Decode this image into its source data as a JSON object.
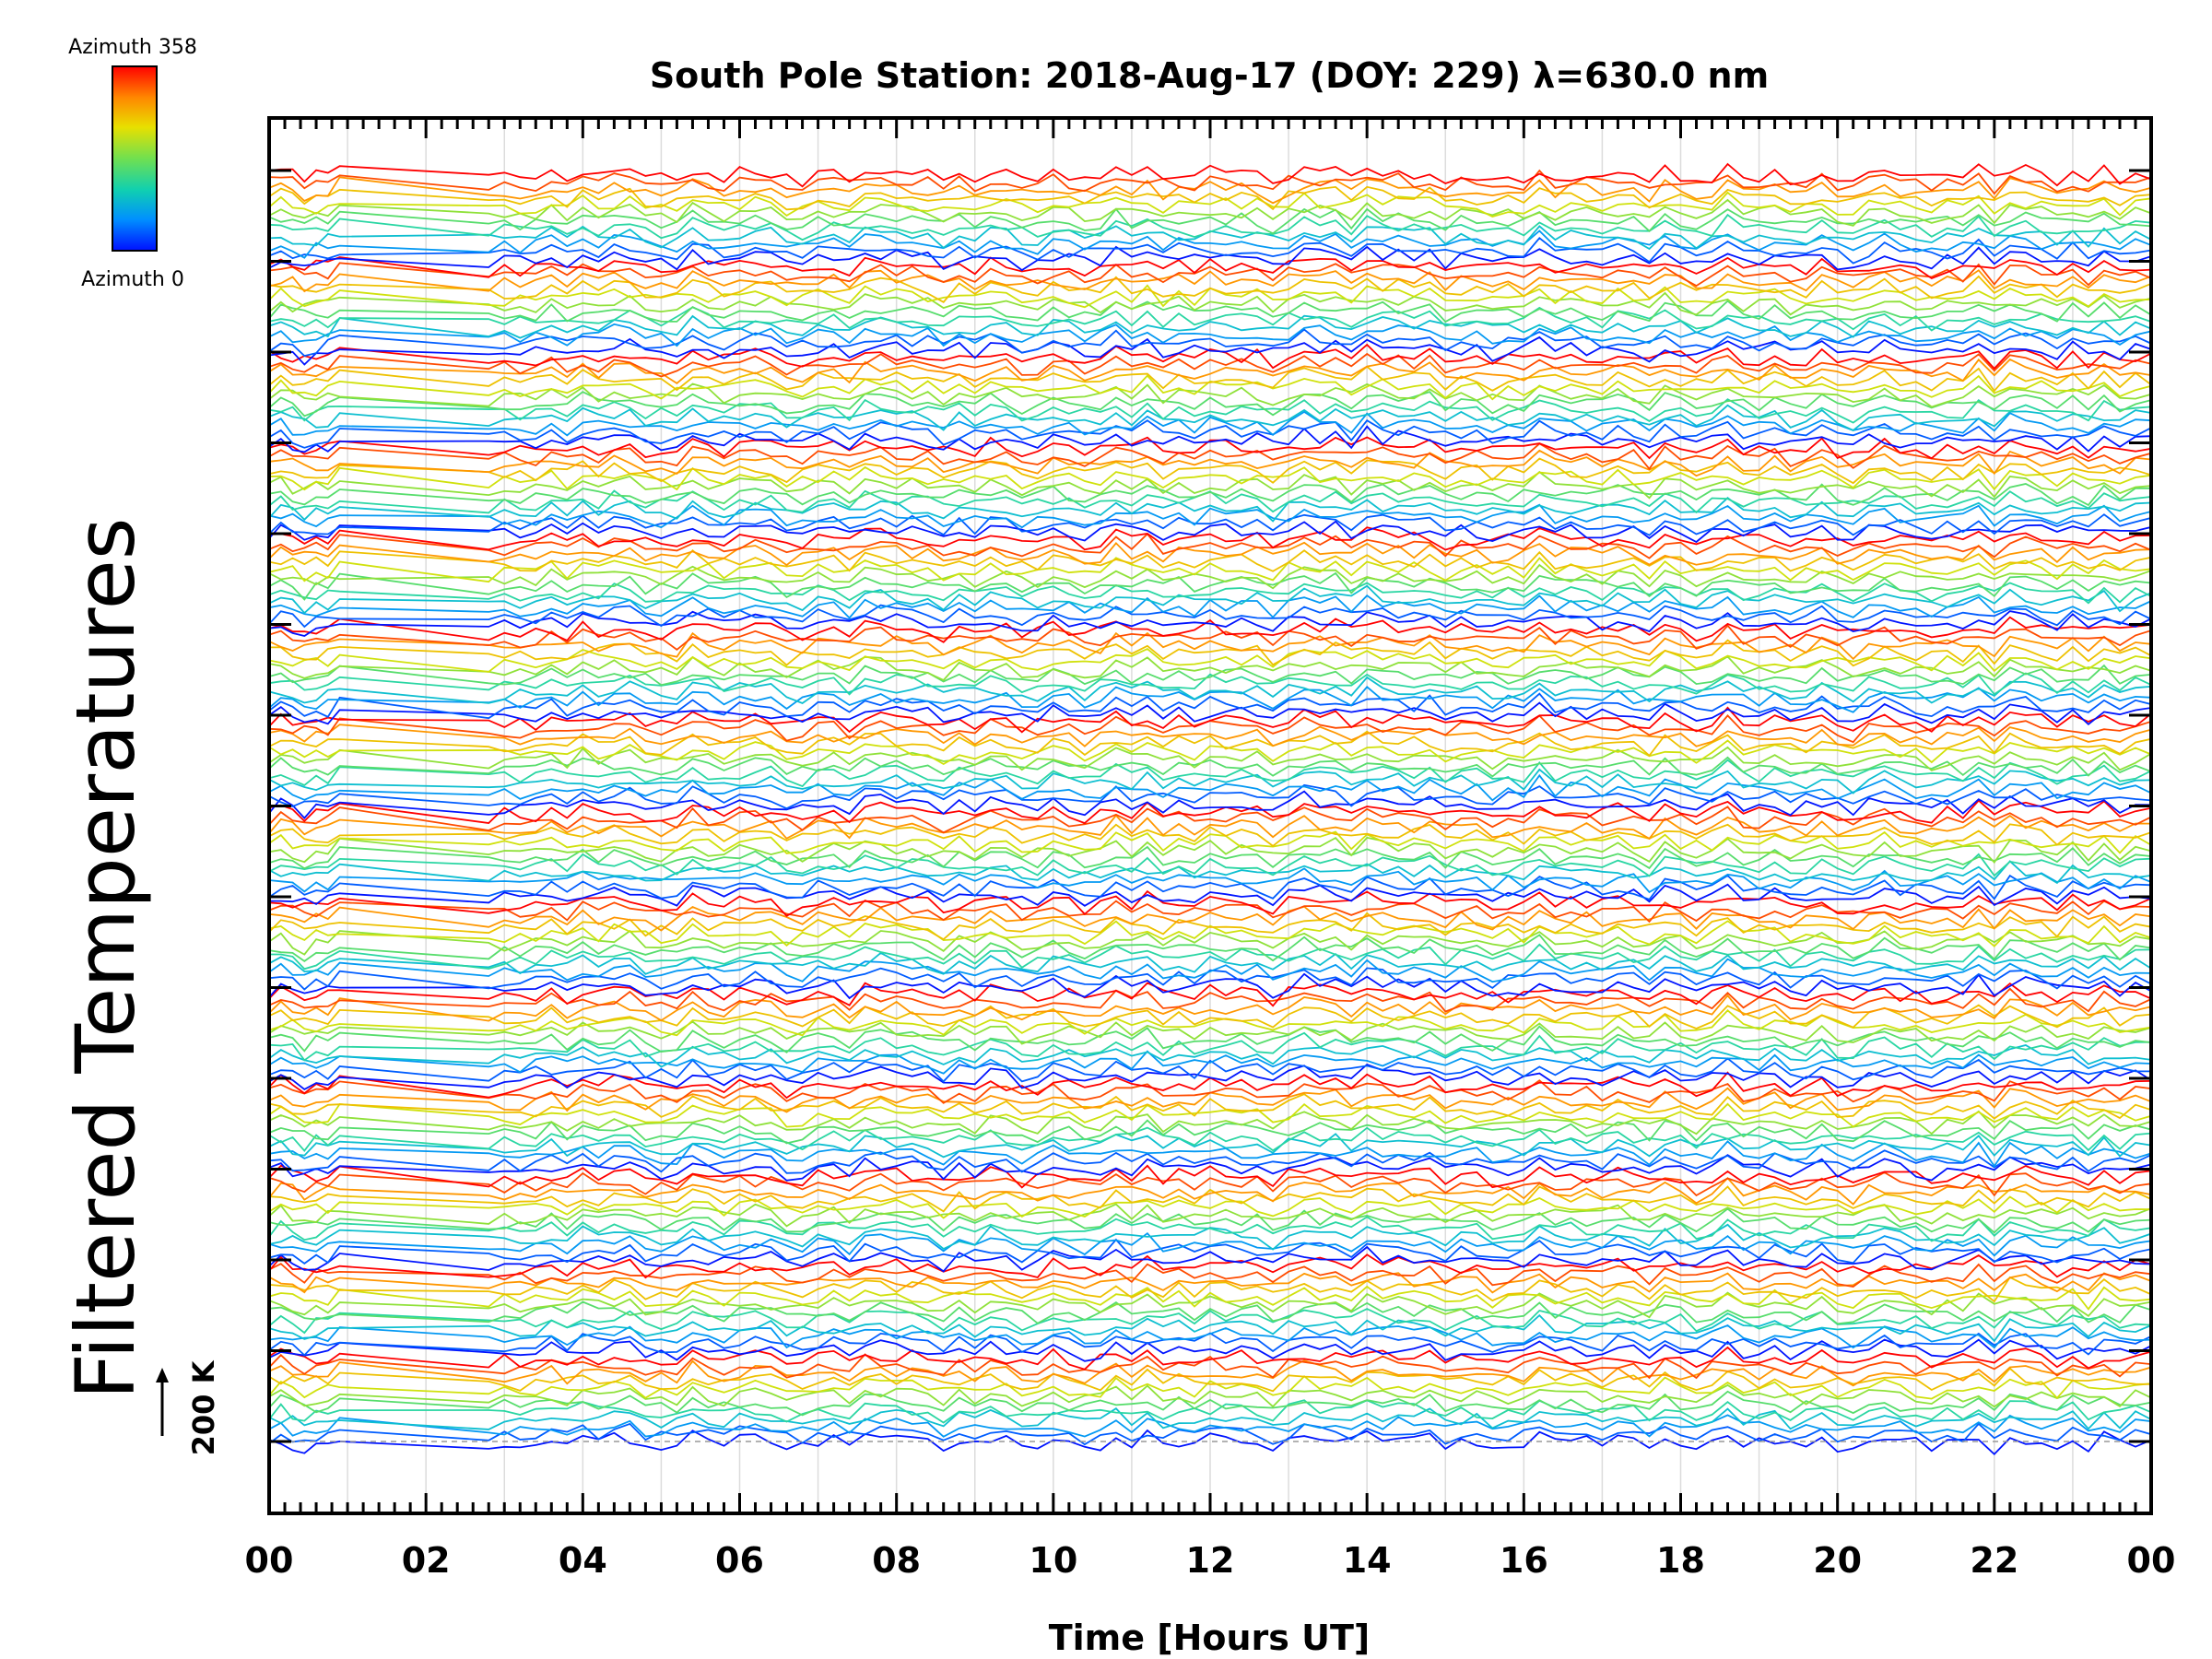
{
  "chart_data": {
    "type": "line",
    "title": "South Pole Station: 2018-Aug-17 (DOY: 229) λ=630.0 nm",
    "xlabel": "Time [Hours UT]",
    "ylabel": "Filtered Temperatures",
    "xlim": [
      0,
      24
    ],
    "x_tick_labels": [
      "00",
      "02",
      "04",
      "06",
      "08",
      "10",
      "12",
      "14",
      "16",
      "18",
      "20",
      "22",
      "00"
    ],
    "grid": "vertical",
    "colorbar": {
      "top_label": "Azimuth 358",
      "bottom_label": "Azimuth 0",
      "colors": [
        "#ff0000",
        "#ffa000",
        "#e0e000",
        "#80e040",
        "#20d0a0",
        "#00a0ff",
        "#0000ff"
      ]
    },
    "scale_bar": {
      "label": "200 K"
    },
    "groups": 14,
    "traces_per_group": 12,
    "series_note_free": true
  }
}
